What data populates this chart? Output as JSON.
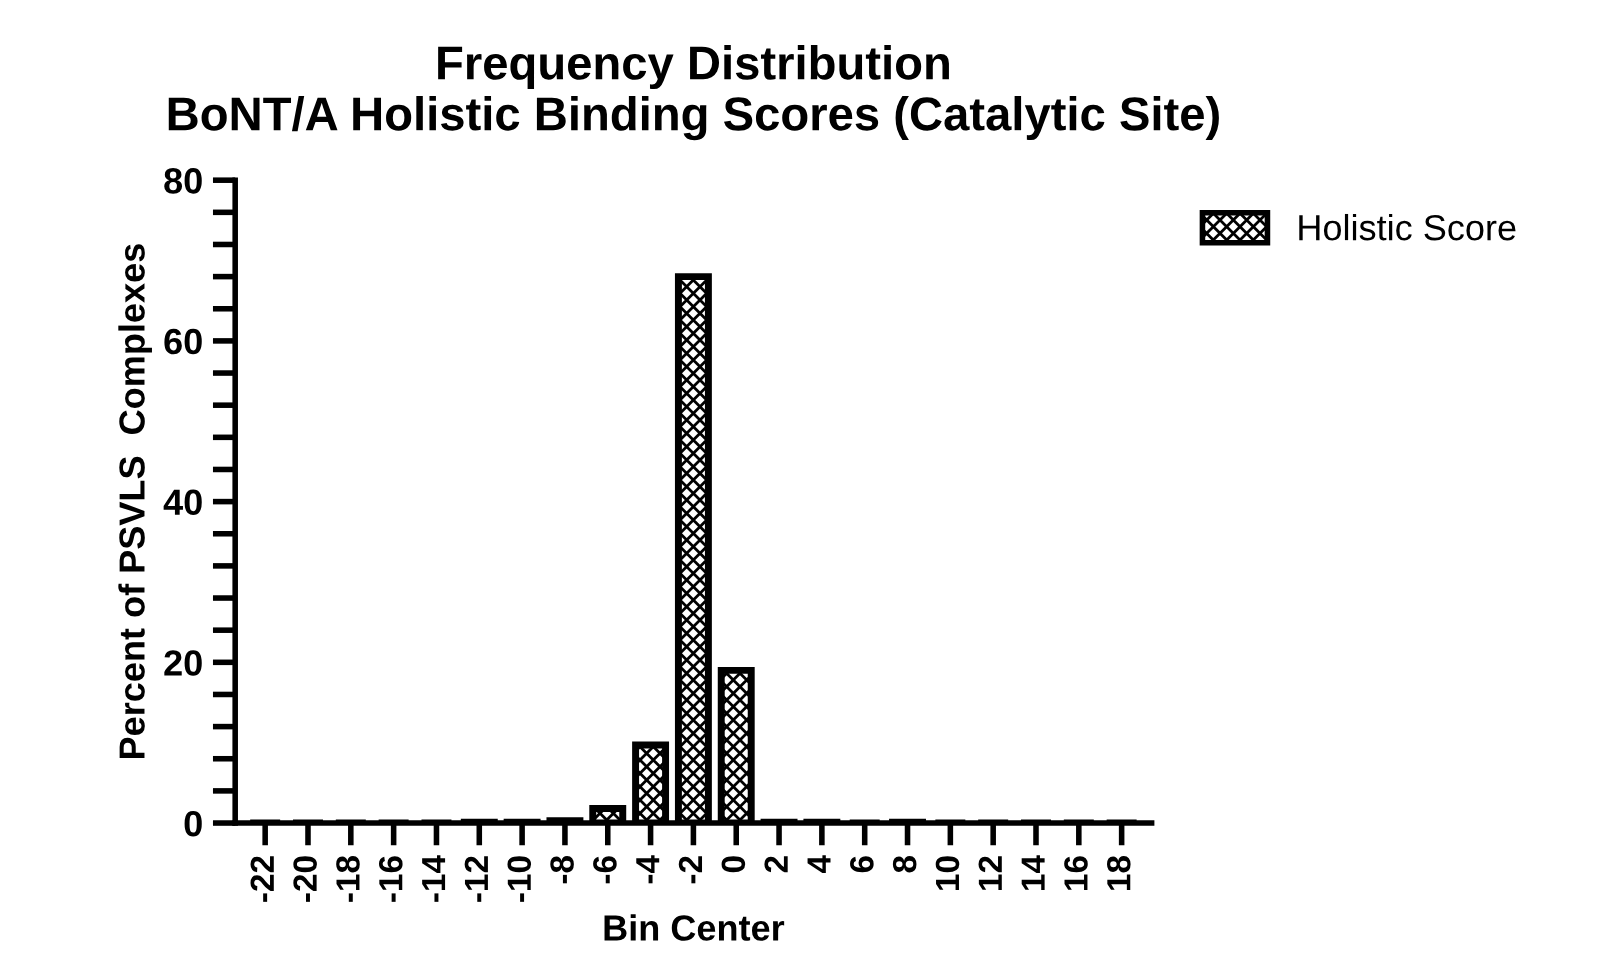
{
  "chart_data": {
    "type": "bar",
    "title": "Frequency Distribution\nBoNT/A Holistic Binding Scores (Catalytic Site)",
    "xlabel": "Bin Center",
    "ylabel": "Percent of PSVLS  Complexes",
    "categories": [
      "-22",
      "-20",
      "-18",
      "-16",
      "-14",
      "-12",
      "-10",
      "-8",
      "-6",
      "-4",
      "-2",
      "0",
      "2",
      "4",
      "6",
      "8",
      "10",
      "12",
      "14",
      "16",
      "18"
    ],
    "series": [
      {
        "name": "Holistic Score",
        "color": "#000000",
        "values": [
          0,
          0,
          0,
          0,
          0,
          0.1,
          0.1,
          0.3,
          1.8,
          9.7,
          68,
          19,
          0.1,
          0.1,
          0,
          0.1,
          0,
          0,
          0,
          0,
          0
        ]
      }
    ],
    "ylim": [
      0,
      80
    ],
    "yticks": [
      0,
      {
        "value": 4,
        "label": null
      },
      {
        "value": 8,
        "label": null
      },
      {
        "value": 12,
        "label": null
      },
      {
        "value": 16,
        "label": null
      },
      20,
      {
        "value": 24,
        "label": null
      },
      {
        "value": 28,
        "label": null
      },
      {
        "value": 32,
        "label": null
      },
      {
        "value": 36,
        "label": null
      },
      40,
      {
        "value": 44,
        "label": null
      },
      {
        "value": 48,
        "label": null
      },
      {
        "value": 52,
        "label": null
      },
      {
        "value": 56,
        "label": null
      },
      60,
      {
        "value": 64,
        "label": null
      },
      {
        "value": 68,
        "label": null
      },
      {
        "value": 72,
        "label": null
      },
      {
        "value": 76,
        "label": null
      },
      80
    ],
    "legend": "top right",
    "grid": false
  }
}
